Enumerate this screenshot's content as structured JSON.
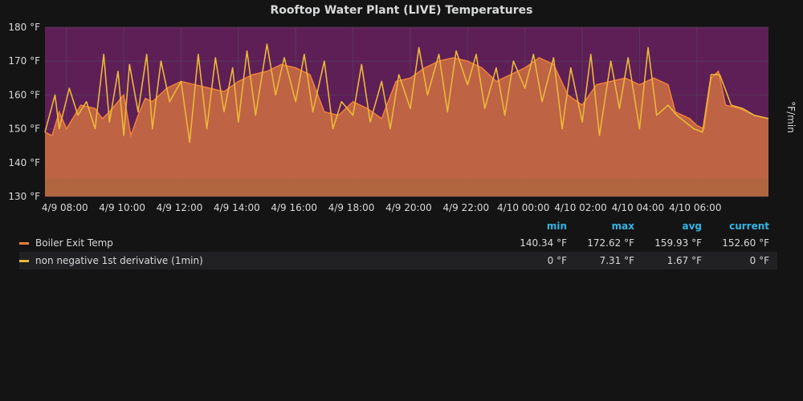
{
  "title": "Rooftop Water Plant (LIVE) Temperatures",
  "colors": {
    "background": "#141414",
    "plot_band": "#5e1f56",
    "area_fill": "#c96a43",
    "series_boiler": "#f0813a",
    "series_derivative": "#eab839",
    "grid": "#5a4060",
    "legend_header": "#33b5e5"
  },
  "chart_data": {
    "type": "line",
    "title": "Rooftop Water Plant (LIVE) Temperatures",
    "x_tick_labels": [
      "4/9 08:00",
      "4/9 10:00",
      "4/9 12:00",
      "4/9 14:00",
      "4/9 16:00",
      "4/9 18:00",
      "4/9 20:00",
      "4/9 22:00",
      "4/10 00:00",
      "4/10 02:00",
      "4/10 04:00",
      "4/10 06:00"
    ],
    "x_range_hours": [
      7.25,
      22.5
    ],
    "y_tick_labels": [
      "130 °F",
      "140 °F",
      "150 °F",
      "160 °F",
      "170 °F",
      "180 °F"
    ],
    "ylim": [
      130,
      180
    ],
    "right_axis_label": "°F/min",
    "grid": true,
    "series": [
      {
        "name": "Boiler Exit Temp",
        "color": "#f0813a",
        "fill": true,
        "x": [
          7.25,
          7.5,
          7.75,
          8.0,
          8.5,
          9.0,
          9.25,
          9.5,
          10.0,
          10.25,
          10.5,
          10.75,
          11.0,
          11.5,
          12.0,
          12.5,
          13.0,
          13.5,
          14.0,
          14.5,
          15.0,
          15.5,
          16.0,
          16.5,
          17.0,
          17.5,
          18.0,
          18.5,
          19.0,
          19.5,
          20.0,
          20.5,
          21.0,
          21.5,
          22.0,
          22.5,
          23.0,
          23.5,
          24.0,
          24.5,
          25.0,
          25.5,
          26.0,
          26.5,
          27.0,
          27.5,
          28.0,
          28.5,
          29.0,
          29.25,
          29.5,
          29.75,
          30.0,
          30.25,
          30.5,
          30.75,
          31.0,
          31.5,
          32.0,
          32.5
        ],
        "values": [
          149,
          148,
          155,
          150,
          157,
          156,
          153,
          155,
          160,
          148,
          154,
          159,
          158,
          162,
          164,
          163,
          162,
          161,
          164,
          166,
          167,
          169,
          168,
          166,
          155,
          154,
          158,
          156,
          153,
          164,
          165,
          168,
          170,
          171,
          170,
          168,
          164,
          166,
          168,
          171,
          169,
          160,
          157,
          163,
          164,
          165,
          163,
          165,
          163,
          155,
          154,
          153,
          151,
          150,
          165,
          167,
          157,
          156,
          154,
          153
        ]
      },
      {
        "name": "non negative 1st derivative (1min)",
        "color": "#eab839",
        "fill": false,
        "x": [
          7.25,
          7.6,
          7.75,
          8.1,
          8.4,
          8.7,
          9.0,
          9.3,
          9.5,
          9.8,
          10.0,
          10.2,
          10.5,
          10.8,
          11.0,
          11.3,
          11.6,
          12.0,
          12.3,
          12.6,
          12.9,
          13.2,
          13.5,
          13.8,
          14.0,
          14.3,
          14.6,
          15.0,
          15.3,
          15.6,
          16.0,
          16.3,
          16.6,
          17.0,
          17.3,
          17.6,
          18.0,
          18.3,
          18.6,
          19.0,
          19.3,
          19.6,
          20.0,
          20.3,
          20.6,
          21.0,
          21.3,
          21.6,
          22.0,
          22.3,
          22.6,
          23.0,
          23.3,
          23.6,
          24.0,
          24.3,
          24.6,
          25.0,
          25.3,
          25.6,
          26.0,
          26.3,
          26.6,
          27.0,
          27.3,
          27.6,
          28.0,
          28.3,
          28.6,
          29.0,
          29.3,
          29.6,
          29.9,
          30.2,
          30.5,
          30.8,
          31.2,
          31.6,
          32.0,
          32.5
        ],
        "values": [
          149,
          160,
          150,
          162,
          154,
          158,
          150,
          172,
          152,
          167,
          148,
          169,
          155,
          172,
          150,
          170,
          158,
          164,
          146,
          172,
          150,
          171,
          155,
          168,
          152,
          173,
          154,
          175,
          160,
          171,
          158,
          172,
          155,
          170,
          150,
          158,
          154,
          169,
          152,
          164,
          150,
          166,
          156,
          174,
          160,
          172,
          155,
          173,
          163,
          172,
          156,
          168,
          154,
          170,
          162,
          172,
          158,
          171,
          150,
          168,
          152,
          172,
          148,
          170,
          156,
          171,
          150,
          174,
          154,
          157,
          154,
          152,
          150,
          149,
          166,
          166,
          157,
          156,
          154,
          153
        ]
      }
    ]
  },
  "legend": {
    "headers": {
      "min": "min",
      "max": "max",
      "avg": "avg",
      "current": "current"
    },
    "rows": [
      {
        "name": "Boiler Exit Temp",
        "color": "#f0813a",
        "min": "140.34 °F",
        "max": "172.62 °F",
        "avg": "159.93 °F",
        "current": "152.60 °F"
      },
      {
        "name": "non negative 1st derivative (1min)",
        "color": "#eab839",
        "min": "0 °F",
        "max": "7.31 °F",
        "avg": "1.67 °F",
        "current": "0 °F"
      }
    ]
  }
}
